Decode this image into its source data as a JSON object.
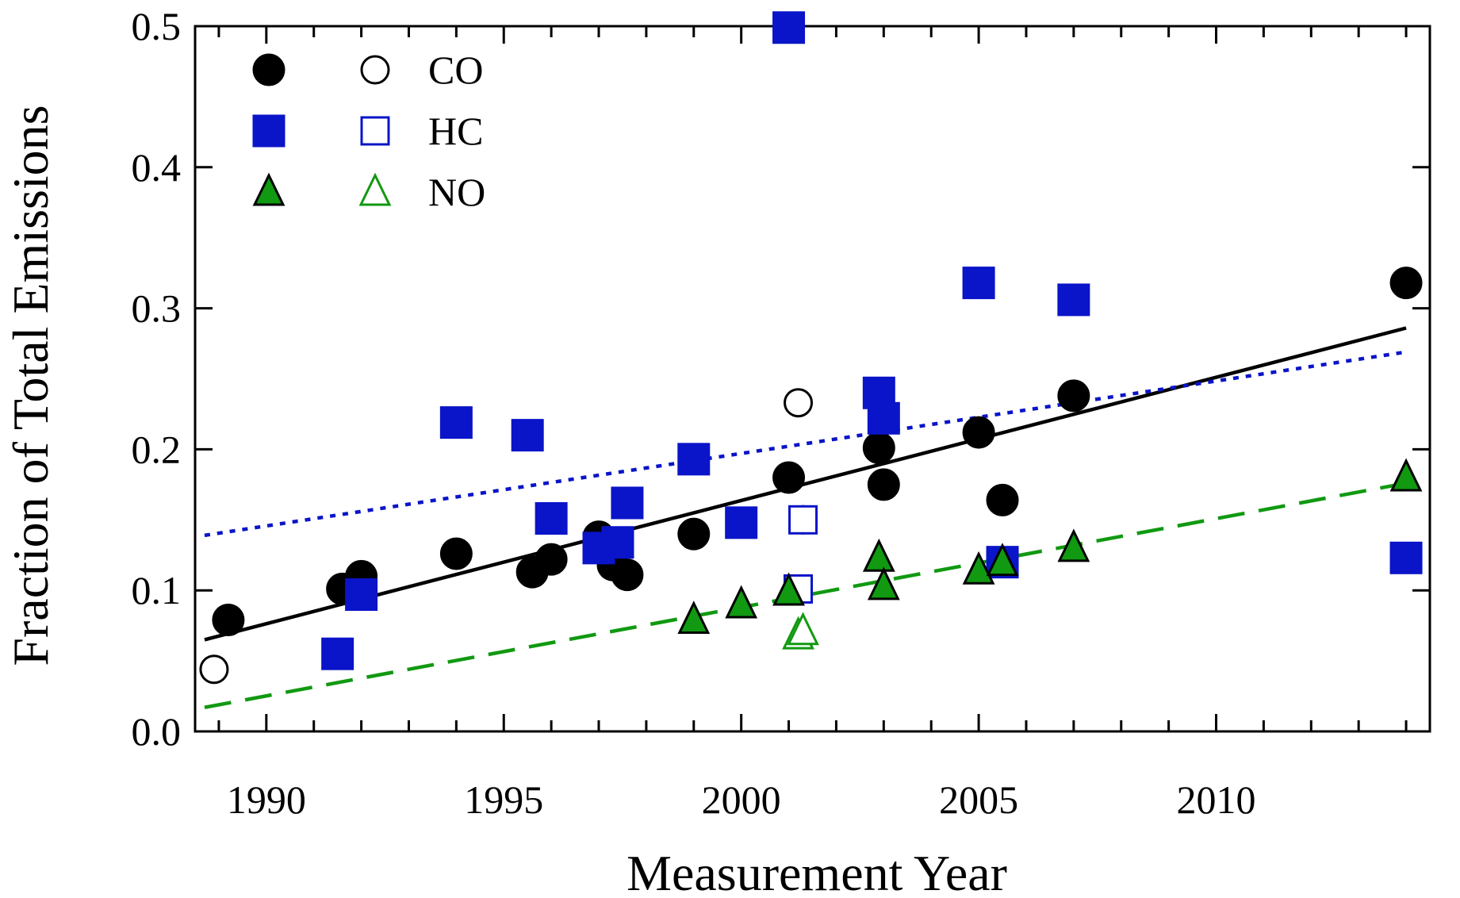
{
  "chart_data": {
    "type": "scatter",
    "title": "",
    "xlabel": "Measurement Year",
    "ylabel": "Fraction of Total Emissions",
    "xlim": [
      1988.5,
      2014.5
    ],
    "ylim": [
      0,
      0.5
    ],
    "x_ticks": [
      1990,
      1995,
      2000,
      2005,
      2010
    ],
    "x_tick_labels": [
      "1990",
      "1995",
      "2000",
      "2005",
      "2010"
    ],
    "y_ticks": [
      0,
      0.1,
      0.2,
      0.3,
      0.4,
      0.5
    ],
    "y_tick_labels": [
      "0.0",
      "0.1",
      "0.2",
      "0.3",
      "0.4",
      "0.5"
    ],
    "legend_position": "top-left",
    "grid": false,
    "series": [
      {
        "name": "CO",
        "color": "#000000",
        "marker": "circle",
        "filled": [
          [
            1989.2,
            0.079
          ],
          [
            1991.6,
            0.101
          ],
          [
            1992.0,
            0.11
          ],
          [
            1994.0,
            0.126
          ],
          [
            1995.6,
            0.113
          ],
          [
            1996.0,
            0.122
          ],
          [
            1997.0,
            0.138
          ],
          [
            1997.3,
            0.118
          ],
          [
            1997.6,
            0.111
          ],
          [
            1999.0,
            0.14
          ],
          [
            2001.0,
            0.18
          ],
          [
            2002.9,
            0.201
          ],
          [
            2003.0,
            0.175
          ],
          [
            2005.0,
            0.212
          ],
          [
            2005.5,
            0.164
          ],
          [
            2007.0,
            0.238
          ],
          [
            2014.0,
            0.318
          ]
        ],
        "open": [
          [
            1988.9,
            0.044
          ],
          [
            2001.2,
            0.233
          ],
          [
            2001.3,
            0.15
          ]
        ],
        "trend": {
          "style": "solid",
          "x": [
            1988.7,
            2014.0
          ],
          "y": [
            0.065,
            0.286
          ]
        }
      },
      {
        "name": "HC",
        "color": "#0a14c8",
        "marker": "square",
        "filled": [
          [
            1991.5,
            0.055
          ],
          [
            1992.0,
            0.097
          ],
          [
            1994.0,
            0.219
          ],
          [
            1995.5,
            0.21
          ],
          [
            1996.0,
            0.151
          ],
          [
            1997.0,
            0.13
          ],
          [
            1997.4,
            0.134
          ],
          [
            1997.6,
            0.162
          ],
          [
            1999.0,
            0.193
          ],
          [
            2000.0,
            0.148
          ],
          [
            2001.0,
            0.499
          ],
          [
            2002.9,
            0.24
          ],
          [
            2003.0,
            0.222
          ],
          [
            2005.0,
            0.318
          ],
          [
            2005.5,
            0.12
          ],
          [
            2007.0,
            0.306
          ],
          [
            2014.0,
            0.123
          ]
        ],
        "open": [
          [
            2001.2,
            0.101
          ],
          [
            2001.3,
            0.15
          ]
        ],
        "trend": {
          "style": "dotted",
          "x": [
            1988.7,
            2014.0
          ],
          "y": [
            0.139,
            0.269
          ]
        }
      },
      {
        "name": "NO",
        "color": "#119911",
        "marker": "triangle",
        "filled": [
          [
            1999.0,
            0.079
          ],
          [
            2000.0,
            0.09
          ],
          [
            2001.0,
            0.099
          ],
          [
            2002.9,
            0.123
          ],
          [
            2003.0,
            0.103
          ],
          [
            2005.0,
            0.114
          ],
          [
            2005.5,
            0.12
          ],
          [
            2007.0,
            0.13
          ],
          [
            2014.0,
            0.18
          ]
        ],
        "open": [
          [
            2001.2,
            0.068
          ],
          [
            2001.3,
            0.071
          ]
        ],
        "trend": {
          "style": "dashed",
          "x": [
            1988.7,
            2014.0
          ],
          "y": [
            0.017,
            0.176
          ]
        }
      }
    ]
  }
}
